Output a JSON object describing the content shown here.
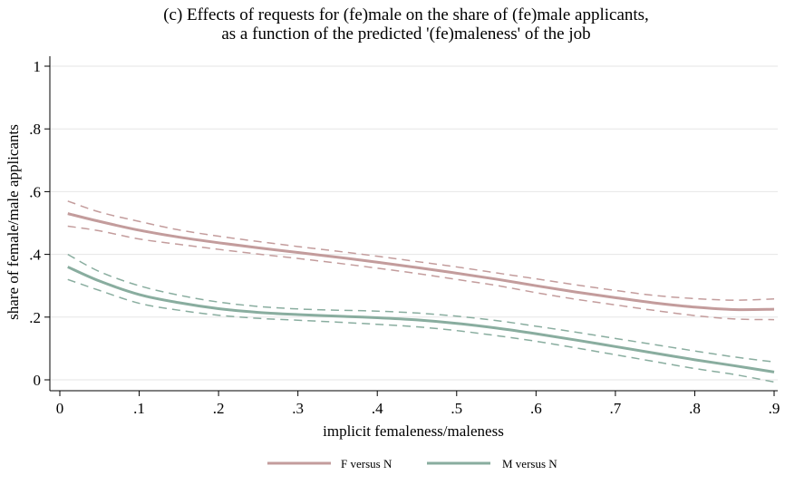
{
  "chart_data": {
    "type": "line",
    "title": [
      "(c) Effects of requests for (fe)male on the share of (fe)male applicants,",
      "as a function of the predicted '(fe)maleness' of the job"
    ],
    "xlabel": "implicit femaleness/maleness",
    "ylabel": "share of female/male applicants",
    "xlim": [
      0,
      0.9
    ],
    "ylim": [
      0,
      1
    ],
    "xticks": [
      0,
      0.1,
      0.2,
      0.3,
      0.4,
      0.5,
      0.6,
      0.7,
      0.8,
      0.9
    ],
    "xtick_labels": [
      "0",
      ".1",
      ".2",
      ".3",
      ".4",
      ".5",
      ".6",
      ".7",
      ".8",
      ".9"
    ],
    "yticks": [
      0,
      0.2,
      0.4,
      0.6,
      0.8,
      1
    ],
    "ytick_labels": [
      "0",
      ".2",
      ".4",
      ".6",
      ".8",
      "1"
    ],
    "grid": true,
    "legend_position": "bottom",
    "x": [
      0.01,
      0.05,
      0.1,
      0.15,
      0.2,
      0.25,
      0.3,
      0.35,
      0.4,
      0.45,
      0.5,
      0.55,
      0.6,
      0.65,
      0.7,
      0.75,
      0.8,
      0.85,
      0.9
    ],
    "series": [
      {
        "name": "F versus N",
        "color": "#c39c9c",
        "values": [
          0.53,
          0.505,
          0.477,
          0.455,
          0.437,
          0.421,
          0.406,
          0.391,
          0.375,
          0.358,
          0.34,
          0.321,
          0.3,
          0.28,
          0.262,
          0.245,
          0.232,
          0.224,
          0.225
        ],
        "ci_upper": [
          0.57,
          0.535,
          0.505,
          0.478,
          0.458,
          0.441,
          0.425,
          0.41,
          0.394,
          0.377,
          0.36,
          0.341,
          0.322,
          0.303,
          0.285,
          0.269,
          0.259,
          0.254,
          0.258
        ],
        "ci_lower": [
          0.49,
          0.475,
          0.449,
          0.432,
          0.416,
          0.401,
          0.387,
          0.372,
          0.356,
          0.339,
          0.32,
          0.301,
          0.278,
          0.257,
          0.239,
          0.221,
          0.205,
          0.194,
          0.192
        ]
      },
      {
        "name": "M versus N",
        "color": "#89ad9f",
        "values": [
          0.36,
          0.315,
          0.272,
          0.246,
          0.227,
          0.215,
          0.208,
          0.203,
          0.198,
          0.191,
          0.18,
          0.165,
          0.147,
          0.127,
          0.106,
          0.085,
          0.064,
          0.045,
          0.025
        ],
        "ci_upper": [
          0.4,
          0.345,
          0.3,
          0.27,
          0.248,
          0.234,
          0.226,
          0.222,
          0.219,
          0.213,
          0.203,
          0.189,
          0.171,
          0.152,
          0.132,
          0.112,
          0.092,
          0.073,
          0.057
        ],
        "ci_lower": [
          0.32,
          0.285,
          0.244,
          0.222,
          0.206,
          0.196,
          0.19,
          0.184,
          0.177,
          0.169,
          0.157,
          0.141,
          0.123,
          0.102,
          0.08,
          0.058,
          0.036,
          0.017,
          -0.007
        ]
      }
    ]
  }
}
